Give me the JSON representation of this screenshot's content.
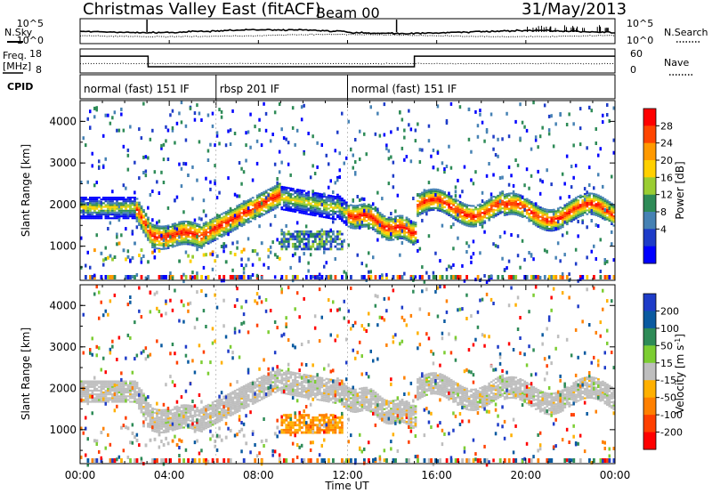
{
  "header": {
    "title": "Christmas Valley East (fitACF)",
    "beam": "Beam 00",
    "date": "31/May/2013"
  },
  "nsky_panel": {
    "left_label": "N.Sky",
    "right_label": "N.Search",
    "left_ticks": [
      "10^5",
      "10^0"
    ],
    "right_ticks": [
      "10^5",
      "10^0"
    ]
  },
  "freq_panel": {
    "left_label_1": "Freq.",
    "left_label_2": "[MHz]",
    "right_label": "Nave",
    "left_ticks": [
      "18",
      "8"
    ],
    "right_ticks": [
      "60",
      "0"
    ],
    "freq_steps": [
      {
        "from_hour": 0,
        "to_hour": 3.05,
        "freq_mhz": 15.0
      },
      {
        "from_hour": 3.05,
        "to_hour": 15.0,
        "freq_mhz": 10.6
      },
      {
        "from_hour": 15.0,
        "to_hour": 24,
        "freq_mhz": 15.0
      }
    ]
  },
  "cpid_panel": {
    "label": "CPID",
    "segments": [
      {
        "label": "normal (fast) 151 IF",
        "start_hour": 0,
        "end_hour": 6.1
      },
      {
        "label": "rbsp 201 IF",
        "start_hour": 6.1,
        "end_hour": 12.0
      },
      {
        "label": "normal (fast) 151 IF",
        "start_hour": 12.0,
        "end_hour": 24
      }
    ]
  },
  "power_panel": {
    "ylabel": "Slant Range [km]",
    "yticks": [
      "4000",
      "3000",
      "2000",
      "1000"
    ],
    "colorbar_label": "Power [dB]",
    "colorbar_ticks": [
      "28",
      "24",
      "20",
      "16",
      "12",
      "8",
      "4"
    ],
    "colorbar_colors": [
      "#ff0000",
      "#ff4500",
      "#ff9900",
      "#ffd000",
      "#9acd32",
      "#2e8b57",
      "#4682b4",
      "#1e3cc8",
      "#0000ff"
    ]
  },
  "velocity_panel": {
    "ylabel": "Slant Range [km]",
    "yticks": [
      "4000",
      "3000",
      "2000",
      "1000"
    ],
    "colorbar_label": "Velocity [m s^-1]",
    "colorbar_ticks": [
      "200",
      "100",
      "50",
      "15",
      "-15",
      "-50",
      "-100",
      "-200"
    ],
    "colorbar_colors": [
      "#1e3cc8",
      "#0a5aa0",
      "#2e8b57",
      "#7ccd32",
      "#bebebe",
      "#ffb000",
      "#ff8000",
      "#ff4000",
      "#ff0000"
    ]
  },
  "xaxis": {
    "label": "Time UT",
    "ticks": [
      "00:00",
      "04:00",
      "08:00",
      "12:00",
      "16:00",
      "20:00",
      "00:00"
    ]
  },
  "chart_data": [
    {
      "type": "heatmap",
      "name_in_figure": "Power [dB]",
      "x_range_hours": [
        0,
        24
      ],
      "y_range_km": [
        180,
        4500
      ],
      "value_range": [
        0,
        30
      ],
      "features": [
        {
          "kind": "band",
          "from_hour": 0.2,
          "to_hour": 2.5,
          "range_km": 1900,
          "value_db": 10
        },
        {
          "kind": "band",
          "from_hour": 2.5,
          "to_hour": 9.0,
          "range_km": 1250,
          "value_db": 26
        },
        {
          "kind": "band",
          "from_hour": 9.0,
          "to_hour": 11.5,
          "range_km": 2050,
          "value_db": 22
        },
        {
          "kind": "band",
          "from_hour": 11.5,
          "to_hour": 15.0,
          "range_km": 1500,
          "value_db": 24
        },
        {
          "kind": "band",
          "from_hour": 15.0,
          "to_hour": 24.0,
          "range_km": 1900,
          "value_db": 22
        },
        {
          "kind": "patch",
          "center_hour": 10.0,
          "range_km": 1100,
          "value_db": 12
        },
        {
          "kind": "patch",
          "center_hour": 8.0,
          "range_km": 2600,
          "value_db": 14
        }
      ]
    },
    {
      "type": "heatmap",
      "name_in_figure": "Velocity [m s^-1]",
      "x_range_hours": [
        0,
        24
      ],
      "y_range_km": [
        180,
        4500
      ],
      "value_range": [
        -200,
        200
      ],
      "features": [
        {
          "kind": "band",
          "from_hour": 0.2,
          "to_hour": 15.0,
          "range_km": 1400,
          "value_ms": 0
        },
        {
          "kind": "band",
          "from_hour": 15.0,
          "to_hour": 24.0,
          "range_km": 1900,
          "value_ms": 0
        },
        {
          "kind": "patch",
          "center_hour": 10.0,
          "range_km": 1050,
          "value_ms": -60
        },
        {
          "kind": "patch",
          "center_hour": 8.5,
          "range_km": 2400,
          "value_ms": 30
        },
        {
          "kind": "patch",
          "center_hour": 12.5,
          "range_km": 1600,
          "value_ms": 30
        }
      ]
    }
  ]
}
